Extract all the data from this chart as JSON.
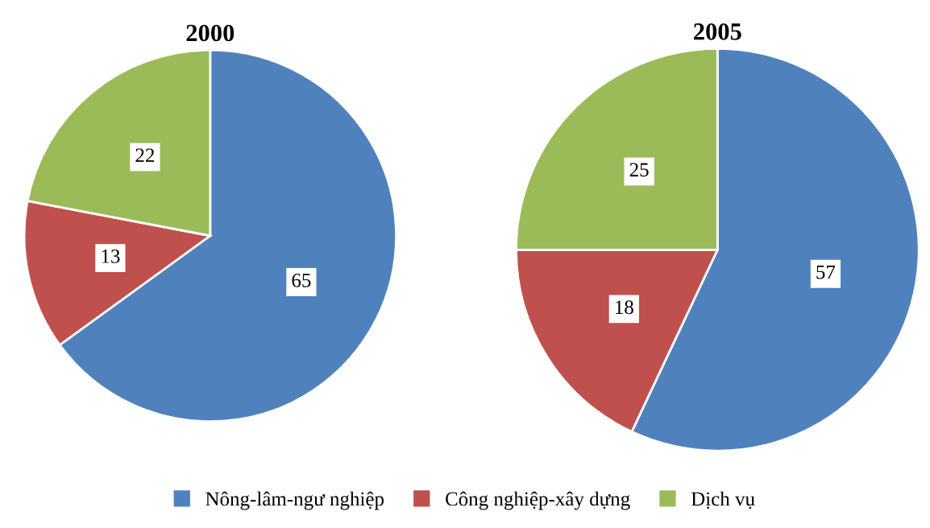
{
  "chart_data": [
    {
      "type": "pie",
      "title": "2000",
      "categories": [
        null,
        null,
        null
      ],
      "values": [
        65,
        13,
        22
      ],
      "colors": [
        "#4f81bd",
        "#c0504d",
        "#9bbb59"
      ],
      "data_labels": true
    },
    {
      "type": "pie",
      "title": "2005",
      "categories": [
        "Nông-lâm-ngư nghiệp",
        "Công nghiệp-xây dựng",
        "Dịch vụ"
      ],
      "values": [
        57,
        18,
        25
      ],
      "colors": [
        "#4f81bd",
        "#c0504d",
        "#9bbb59"
      ],
      "data_labels": true,
      "legend": "bottom"
    }
  ]
}
